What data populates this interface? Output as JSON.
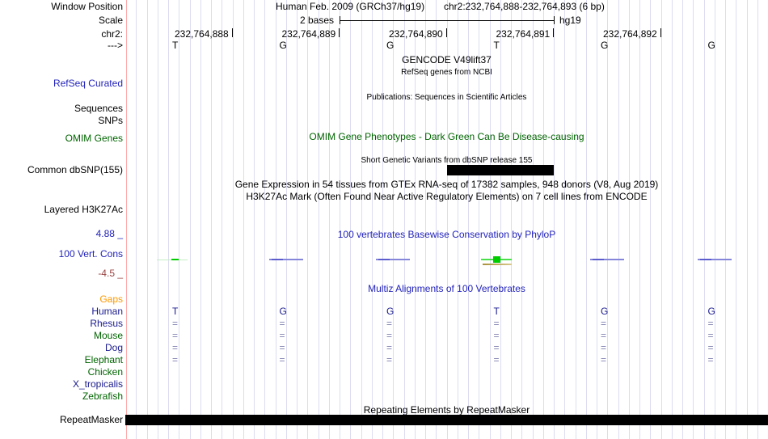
{
  "window": {
    "position_label": "Window Position",
    "assembly_title": "Human Feb. 2009 (GRCh37/hg19)",
    "position_title": "chr2:232,764,888-232,764,893 (6 bp)"
  },
  "ruler": {
    "scale_label": "Scale",
    "scale_value": "2 bases",
    "assembly_tag": "hg19",
    "chrom_label": "chr2:",
    "strand_label": "--->",
    "coordinates": [
      "232,764,888",
      "232,764,889",
      "232,764,890",
      "232,764,891",
      "232,764,892"
    ],
    "bases": [
      "T",
      "G",
      "G",
      "T",
      "G",
      "G"
    ]
  },
  "tracks": {
    "gencode": {
      "title": "GENCODE V49lift37",
      "subtitle": "RefSeq genes from NCBI"
    },
    "refseq": {
      "label": "RefSeq Curated"
    },
    "publications": {
      "title": "Publications: Sequences in Scientific Articles",
      "label_sequences": "Sequences",
      "label_snps": "SNPs"
    },
    "omim": {
      "label": "OMIM Genes",
      "title": "OMIM Gene Phenotypes - Dark Green Can Be Disease-causing"
    },
    "dbsnp": {
      "label": "Common dbSNP(155)",
      "title": "Short Genetic Variants from dbSNP release 155",
      "feature_start_col": 4,
      "feature_span_cols": 1
    },
    "gtex": {
      "title": "Gene Expression in 54 tissues from GTEx RNA-seq of 17382 samples, 948 donors (V8, Aug 2019)"
    },
    "h3k27ac": {
      "label": "Layered H3K27Ac",
      "title": "H3K27Ac Mark (Often Found Near Active Regulatory Elements) on 7 cell lines from ENCODE"
    },
    "conservation": {
      "label": "100 Vert. Cons",
      "title": "100 vertebrates Basewise Conservation by PhyloP",
      "max_value": "4.88 _",
      "min_value": "-4.5 _",
      "marks": [
        "green_faint",
        "blue",
        "blue",
        "green_strong",
        "blue",
        "blue"
      ]
    },
    "multiz": {
      "title": "Multiz Alignments of 100 Vertebrates",
      "species": [
        {
          "name": "Gaps",
          "color": "orange",
          "cells": [
            "",
            "",
            "",
            "",
            "",
            ""
          ]
        },
        {
          "name": "Human",
          "color": "navy",
          "cells": [
            "T",
            "G",
            "G",
            "T",
            "G",
            "G"
          ]
        },
        {
          "name": "Rhesus",
          "color": "navy",
          "cells": [
            "=",
            "=",
            "=",
            "=",
            "=",
            "="
          ]
        },
        {
          "name": "Mouse",
          "color": "green",
          "cells": [
            "=",
            "=",
            "=",
            "=",
            "=",
            "="
          ]
        },
        {
          "name": "Dog",
          "color": "navy",
          "cells": [
            "=",
            "=",
            "=",
            "=",
            "=",
            "="
          ]
        },
        {
          "name": "Elephant",
          "color": "green",
          "cells": [
            "=",
            "=",
            "=",
            "=",
            "=",
            "="
          ]
        },
        {
          "name": "Chicken",
          "color": "green",
          "cells": [
            "",
            "",
            "",
            "",
            "",
            ""
          ]
        },
        {
          "name": "X_tropicalis",
          "color": "navy",
          "cells": [
            "",
            "",
            "",
            "",
            "",
            ""
          ]
        },
        {
          "name": "Zebrafish",
          "color": "green",
          "cells": [
            "",
            "",
            "",
            "",
            "",
            ""
          ]
        }
      ]
    },
    "repeatmasker": {
      "label": "RepeatMasker",
      "title": "Repeating Elements by RepeatMasker"
    }
  },
  "colors": {
    "track_blue": "#2222bb",
    "track_green": "#006400",
    "gaps_orange": "#ff9900",
    "min_maroon": "#994444",
    "align_navy": "#1a1a8f",
    "align_match": "#8080b0",
    "grid_line": "#dcdcf2",
    "edge_line": "#ffaaaa",
    "cons_blue": "#8585da",
    "cons_blue_dark": "#5c5ccc",
    "cons_green_bright": "#00cc00",
    "cons_green_line": "#4ae04a",
    "cons_green_faint": "#c4eec4",
    "cons_tan_dark": "#a8903a",
    "cons_tan_light": "#d8c98c",
    "feature_black": "#000000"
  }
}
